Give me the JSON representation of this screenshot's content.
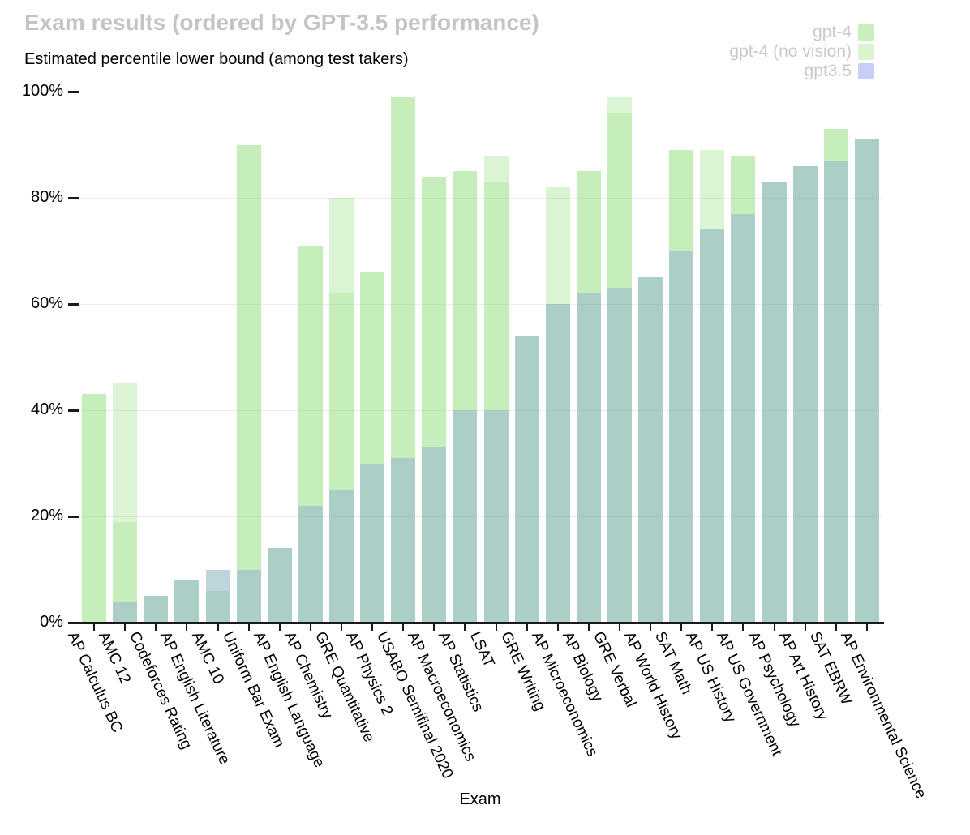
{
  "header": {
    "title": "Exam results (ordered by GPT-3.5 performance)",
    "subtitle": "Estimated percentile lower bound (among test takers)"
  },
  "legend": {
    "text_color": "#c9c9c9",
    "items": [
      {
        "label": "gpt-4",
        "swatch_color": "#c8f0bf"
      },
      {
        "label": "gpt-4 (no vision)",
        "swatch_color": "#d9f4d0"
      },
      {
        "label": "gpt3.5",
        "swatch_color": "#c7cff7"
      }
    ]
  },
  "chart_data": {
    "type": "bar",
    "title": "Exam results (ordered by GPT-3.5 performance)",
    "subtitle": "Estimated percentile lower bound (among test takers)",
    "xlabel": "Exam",
    "ylabel": "Estimated percentile lower bound (among test takers)",
    "ylim": [
      0,
      100
    ],
    "grid": true,
    "legend_position": "top-right",
    "bar_style": "overlapping-translucent",
    "y_axis": {
      "ticks": [
        {
          "label": "0%",
          "value": 0
        },
        {
          "label": "20%",
          "value": 20
        },
        {
          "label": "40%",
          "value": 40
        },
        {
          "label": "60%",
          "value": 60
        },
        {
          "label": "80%",
          "value": 80
        },
        {
          "label": "100%",
          "value": 100
        }
      ]
    },
    "categories": [
      "AP Calculus BC",
      "AMC 12",
      "Codeforces Rating",
      "AP English Literature",
      "AMC 10",
      "Uniform Bar Exam",
      "AP English Language",
      "AP Chemistry",
      "GRE Quantitative",
      "AP Physics 2",
      "USABO Semifinal 2020",
      "AP Macroeconomics",
      "AP Statistics",
      "LSAT",
      "GRE Writing",
      "AP Microeconomics",
      "AP Biology",
      "GRE Verbal",
      "AP World History",
      "SAT Math",
      "AP US History",
      "AP US Government",
      "AP Psychology",
      "AP Art History",
      "SAT EBRW",
      "AP Environmental Science"
    ],
    "series": [
      {
        "name": "gpt-4",
        "fill": "rgba(125,215,100,0.28)",
        "values": [
          43,
          45,
          5,
          8,
          6,
          90,
          14,
          71,
          80,
          66,
          99,
          84,
          85,
          88,
          54,
          82,
          85,
          99,
          65,
          89,
          89,
          88,
          83,
          86,
          93,
          91
        ]
      },
      {
        "name": "gpt-4 (no vision)",
        "fill": "rgba(135,220,110,0.24)",
        "values": [
          43,
          19,
          5,
          8,
          10,
          90,
          14,
          71,
          62,
          66,
          99,
          84,
          85,
          83,
          54,
          60,
          85,
          96,
          65,
          89,
          74,
          88,
          83,
          86,
          93,
          91
        ]
      },
      {
        "name": "gpt3.5",
        "fill": "rgba(100,125,230,0.28)",
        "values": [
          0,
          4,
          5,
          8,
          10,
          10,
          14,
          22,
          25,
          30,
          31,
          33,
          40,
          40,
          54,
          60,
          62,
          63,
          65,
          70,
          74,
          77,
          83,
          86,
          87,
          91
        ]
      }
    ]
  }
}
